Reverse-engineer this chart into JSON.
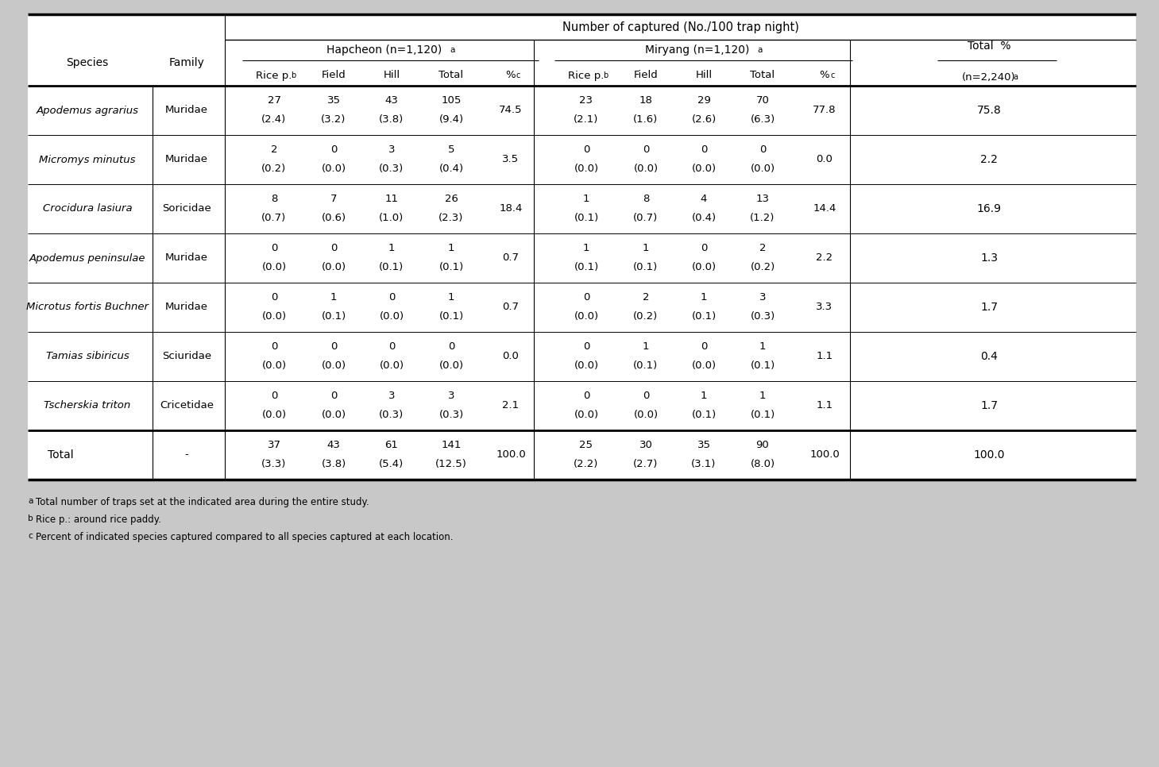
{
  "title": "Number of captured (No./100 trap night)",
  "species": [
    "Apodemus agrarius",
    "Micromys minutus",
    "Crocidura lasiura",
    "Apodemus peninsulae",
    "Microtus fortis Buchner",
    "Tamias sibiricus",
    "Tscherskia triton",
    "Total"
  ],
  "family": [
    "Muridae",
    "Muridae",
    "Soricidae",
    "Muridae",
    "Muridae",
    "Sciuridae",
    "Cricetidae",
    "-"
  ],
  "hapcheon": [
    [
      "27",
      "35",
      "43",
      "105",
      "74.5",
      "(2.4)",
      "(3.2)",
      "(3.8)",
      "(9.4)"
    ],
    [
      "2",
      "0",
      "3",
      "5",
      "3.5",
      "(0.2)",
      "(0.0)",
      "(0.3)",
      "(0.4)"
    ],
    [
      "8",
      "7",
      "11",
      "26",
      "18.4",
      "(0.7)",
      "(0.6)",
      "(1.0)",
      "(2.3)"
    ],
    [
      "0",
      "0",
      "1",
      "1",
      "0.7",
      "(0.0)",
      "(0.0)",
      "(0.1)",
      "(0.1)"
    ],
    [
      "0",
      "1",
      "0",
      "1",
      "0.7",
      "(0.0)",
      "(0.1)",
      "(0.0)",
      "(0.1)"
    ],
    [
      "0",
      "0",
      "0",
      "0",
      "0.0",
      "(0.0)",
      "(0.0)",
      "(0.0)",
      "(0.0)"
    ],
    [
      "0",
      "0",
      "3",
      "3",
      "2.1",
      "(0.0)",
      "(0.0)",
      "(0.3)",
      "(0.3)"
    ],
    [
      "37",
      "43",
      "61",
      "141",
      "100.0",
      "(3.3)",
      "(3.8)",
      "(5.4)",
      "(12.5)"
    ]
  ],
  "miryang": [
    [
      "23",
      "18",
      "29",
      "70",
      "77.8",
      "(2.1)",
      "(1.6)",
      "(2.6)",
      "(6.3)"
    ],
    [
      "0",
      "0",
      "0",
      "0",
      "0.0",
      "(0.0)",
      "(0.0)",
      "(0.0)",
      "(0.0)"
    ],
    [
      "1",
      "8",
      "4",
      "13",
      "14.4",
      "(0.1)",
      "(0.7)",
      "(0.4)",
      "(1.2)"
    ],
    [
      "1",
      "1",
      "0",
      "2",
      "2.2",
      "(0.1)",
      "(0.1)",
      "(0.0)",
      "(0.2)"
    ],
    [
      "0",
      "2",
      "1",
      "3",
      "3.3",
      "(0.0)",
      "(0.2)",
      "(0.1)",
      "(0.3)"
    ],
    [
      "0",
      "1",
      "0",
      "1",
      "1.1",
      "(0.0)",
      "(0.1)",
      "(0.0)",
      "(0.1)"
    ],
    [
      "0",
      "0",
      "1",
      "1",
      "1.1",
      "(0.0)",
      "(0.0)",
      "(0.1)",
      "(0.1)"
    ],
    [
      "25",
      "30",
      "35",
      "90",
      "100.0",
      "(2.2)",
      "(2.7)",
      "(3.1)",
      "(8.0)"
    ]
  ],
  "total_pct": [
    "75.8",
    "2.2",
    "16.9",
    "1.3",
    "1.7",
    "0.4",
    "1.7",
    "100.0"
  ],
  "footnotes": [
    "aTotal number of traps set at the indicated area during the entire study.",
    "bRice p.: around rice paddy.",
    "cPercent of indicated species captured compared to all species captured at each location."
  ],
  "footnote_superscripts": [
    "a",
    "b",
    "c"
  ],
  "footnote_texts": [
    "Total number of traps set at the indicated area during the entire study.",
    "Rice p.: around rice paddy.",
    "Percent of indicated species captured compared to all species captured at each location."
  ],
  "bg_color": "#c8c8c8",
  "table_bg": "#ffffff",
  "text_color": "#000000"
}
